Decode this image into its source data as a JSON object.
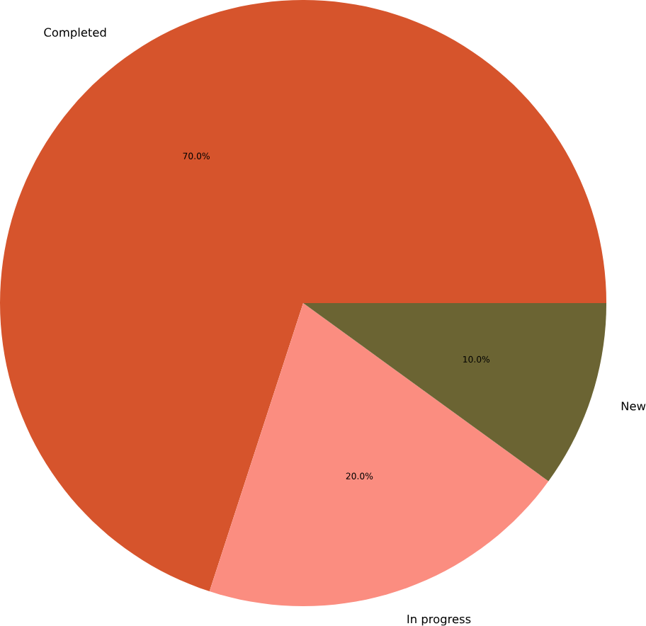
{
  "chart_data": {
    "type": "pie",
    "categories": [
      "Completed",
      "In progress",
      "New"
    ],
    "values": [
      70,
      20,
      10
    ],
    "value_labels": [
      "70.0%",
      "20.0%",
      "10.0%"
    ],
    "colors": [
      "#d6542c",
      "#fb8d80",
      "#6b6433"
    ]
  }
}
